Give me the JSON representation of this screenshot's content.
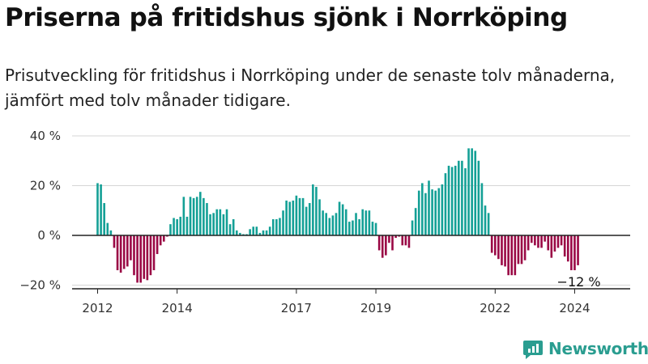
{
  "title": "Priserna på fritidshus sjönk i Norrköping",
  "subtitle": "Prisutveckling för fritidshus i Norrköping under de senaste tolv månaderna, jämfört med tolv månader tidigare.",
  "brand": "Newsworthy",
  "colors": {
    "positive": "#14a096",
    "negative": "#9a0845",
    "axis": "#333333",
    "grid": "#d6d6d6",
    "brand": "#2a9d90"
  },
  "chart_data": {
    "type": "bar",
    "unit": "%",
    "ylim": [
      -20,
      40
    ],
    "yticks": [
      {
        "value": 40,
        "label": "40 %"
      },
      {
        "value": 20,
        "label": "20 %"
      },
      {
        "value": 0,
        "label": "0 %"
      },
      {
        "value": -20,
        "label": "−20 %"
      }
    ],
    "grid": true,
    "x_start": "2012-01",
    "xticks": [
      "2012",
      "2014",
      "2017",
      "2019",
      "2022",
      "2024"
    ],
    "annotation": "−12 %",
    "values": [
      21,
      20.5,
      13,
      5,
      2,
      -5,
      -14,
      -15,
      -13.5,
      -12.5,
      -10,
      -16,
      -19,
      -19,
      -17.5,
      -18,
      -16,
      -14,
      -7.5,
      -4,
      -2.5,
      -0.5,
      4.5,
      7,
      6.5,
      7.5,
      15.5,
      7.5,
      15.5,
      15,
      15.5,
      17.5,
      15,
      13,
      8.5,
      9,
      10.5,
      10.5,
      8.5,
      10.5,
      4.5,
      6.5,
      2,
      1,
      0.5,
      0.5,
      2.5,
      3.5,
      3.5,
      1,
      2,
      2,
      3.5,
      6.5,
      6.5,
      7,
      10,
      14,
      13.5,
      14,
      16,
      15,
      15,
      11.5,
      13,
      20.5,
      19.5,
      14.5,
      10,
      9,
      7,
      8,
      9,
      13.5,
      12.5,
      10.5,
      5.5,
      6,
      9,
      6.5,
      10.5,
      10,
      10,
      5.5,
      5,
      -6,
      -9,
      -8,
      -3,
      -6,
      -1,
      -0.5,
      -4,
      -4,
      -5,
      6,
      11,
      18,
      21,
      17,
      22,
      18.5,
      18,
      19,
      20.5,
      25,
      28,
      27.5,
      28,
      30,
      30,
      27,
      35,
      35,
      34,
      30,
      21,
      12,
      9,
      -7,
      -8,
      -9.5,
      -12,
      -12.5,
      -16,
      -16,
      -16,
      -11.5,
      -11.5,
      -10,
      -6,
      -3,
      -4,
      -5,
      -5,
      -2.5,
      -6,
      -9,
      -6.5,
      -5,
      -4,
      -8.5,
      -10.5,
      -14,
      -14,
      -12
    ]
  }
}
